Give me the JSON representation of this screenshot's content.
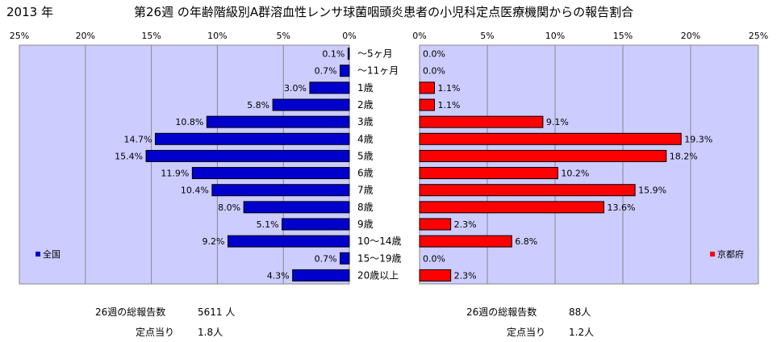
{
  "header": {
    "year": "2013 年",
    "title": "第26週 の年齢階級別A群溶血性レンサ球菌咽頭炎患者の小児科定点医療機関からの報告割合"
  },
  "chart_data": [
    {
      "type": "bar",
      "orientation": "horizontal",
      "direction": "right-to-left",
      "categories": [
        "～5ヶ月",
        "～11ヶ月",
        "1歳",
        "2歳",
        "3歳",
        "4歳",
        "5歳",
        "6歳",
        "7歳",
        "8歳",
        "9歳",
        "10～14歳",
        "15～19歳",
        "20歳以上"
      ],
      "series": [
        {
          "name": "全国",
          "color": "#0000cc",
          "values": [
            0.1,
            0.7,
            3.0,
            5.8,
            10.8,
            14.7,
            15.4,
            11.9,
            10.4,
            8.0,
            5.1,
            9.2,
            0.7,
            4.3
          ],
          "labels": [
            "0.1%",
            "0.7%",
            "3.0%",
            "5.8%",
            "10.8%",
            "14.7%",
            "15.4%",
            "11.9%",
            "10.4%",
            "8.0%",
            "5.1%",
            "9.2%",
            "0.7%",
            "4.3%"
          ]
        }
      ],
      "xlim": [
        0,
        25
      ],
      "xticks": [
        "25%",
        "20%",
        "15%",
        "10%",
        "5%",
        "0%"
      ],
      "xtick_values": [
        25,
        20,
        15,
        10,
        5,
        0
      ],
      "grid": true,
      "legend": "bottom-left",
      "plot_background": "#ccccff"
    },
    {
      "type": "bar",
      "orientation": "horizontal",
      "direction": "left-to-right",
      "categories": [
        "～5ヶ月",
        "～11ヶ月",
        "1歳",
        "2歳",
        "3歳",
        "4歳",
        "5歳",
        "6歳",
        "7歳",
        "8歳",
        "9歳",
        "10～14歳",
        "15～19歳",
        "20歳以上"
      ],
      "series": [
        {
          "name": "京都府",
          "color": "#ff0000",
          "values": [
            0.0,
            0.0,
            1.1,
            1.1,
            9.1,
            19.3,
            18.2,
            10.2,
            15.9,
            13.6,
            2.3,
            6.8,
            0.0,
            2.3
          ],
          "labels": [
            "0.0%",
            "0.0%",
            "1.1%",
            "1.1%",
            "9.1%",
            "19.3%",
            "18.2%",
            "10.2%",
            "15.9%",
            "13.6%",
            "2.3%",
            "6.8%",
            "0.0%",
            "2.3%"
          ]
        }
      ],
      "xlim": [
        0,
        25
      ],
      "xticks": [
        "0%",
        "5%",
        "10%",
        "15%",
        "20%",
        "25%"
      ],
      "xtick_values": [
        0,
        5,
        10,
        15,
        20,
        25
      ],
      "grid": true,
      "legend": "bottom-right",
      "plot_background": "#ccccff"
    }
  ],
  "summary": {
    "national": {
      "total_label": "26週の総報告数",
      "total_value": "5611 人",
      "per_label": "定点当り",
      "per_value": "1.8人"
    },
    "kyoto": {
      "total_label": "26週の総報告数",
      "total_value": "88人",
      "per_label": "定点当り",
      "per_value": "1.2人"
    }
  }
}
